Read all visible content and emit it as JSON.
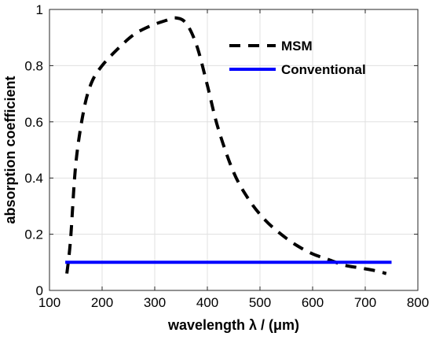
{
  "chart_data": {
    "type": "line",
    "xlabel": "wavelength λ / (μm)",
    "ylabel": "absorption coefficient",
    "xlim": [
      100,
      800
    ],
    "ylim": [
      0,
      1
    ],
    "x_ticks": [
      100,
      200,
      300,
      400,
      500,
      600,
      700,
      800
    ],
    "y_ticks": [
      0,
      0.2,
      0.4,
      0.6,
      0.8,
      1
    ],
    "grid": true,
    "legend_position": "top-right",
    "series": [
      {
        "name": "MSM",
        "style": "dashed",
        "color": "#000000",
        "x": [
          133,
          140,
          150,
          165,
          180,
          200,
          230,
          260,
          290,
          320,
          340,
          360,
          380,
          400,
          420,
          450,
          480,
          510,
          540,
          570,
          600,
          630,
          660,
          690,
          720,
          740
        ],
        "y": [
          0.06,
          0.18,
          0.45,
          0.64,
          0.74,
          0.8,
          0.86,
          0.91,
          0.94,
          0.96,
          0.97,
          0.95,
          0.87,
          0.73,
          0.58,
          0.42,
          0.32,
          0.25,
          0.2,
          0.16,
          0.13,
          0.11,
          0.09,
          0.08,
          0.07,
          0.06
        ]
      },
      {
        "name": "Conventional",
        "style": "solid",
        "color": "#0000ff",
        "x": [
          130,
          750
        ],
        "y": [
          0.1,
          0.1
        ]
      }
    ]
  }
}
